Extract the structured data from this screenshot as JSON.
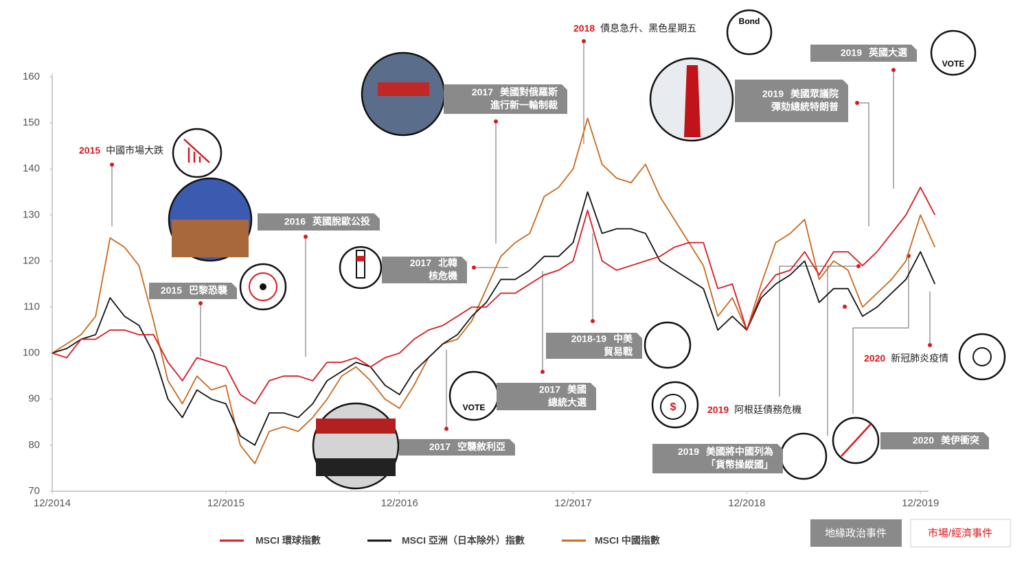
{
  "chart_data": {
    "type": "line",
    "x": [
      "12/2014",
      "01/2015",
      "02/2015",
      "03/2015",
      "04/2015",
      "05/2015",
      "06/2015",
      "07/2015",
      "08/2015",
      "09/2015",
      "10/2015",
      "11/2015",
      "12/2015",
      "01/2016",
      "02/2016",
      "03/2016",
      "04/2016",
      "05/2016",
      "06/2016",
      "07/2016",
      "08/2016",
      "09/2016",
      "10/2016",
      "11/2016",
      "12/2016",
      "01/2017",
      "02/2017",
      "03/2017",
      "04/2017",
      "05/2017",
      "06/2017",
      "07/2017",
      "08/2017",
      "09/2017",
      "10/2017",
      "11/2017",
      "12/2017",
      "01/2018",
      "02/2018",
      "03/2018",
      "04/2018",
      "05/2018",
      "06/2018",
      "07/2018",
      "08/2018",
      "09/2018",
      "10/2018",
      "11/2018",
      "12/2018",
      "01/2019",
      "02/2019",
      "03/2019",
      "04/2019",
      "05/2019",
      "06/2019",
      "07/2019",
      "08/2019",
      "09/2019",
      "10/2019",
      "11/2019",
      "12/2019",
      "01/2020"
    ],
    "series": [
      {
        "name": "MSCI 環球指數",
        "color": "#d7191f",
        "values": [
          100,
          99,
          103,
          103,
          105,
          105,
          104,
          104,
          98,
          94,
          99,
          98,
          97,
          91,
          89,
          94,
          95,
          95,
          94,
          98,
          98,
          99,
          97,
          99,
          100,
          103,
          105,
          106,
          108,
          110,
          110,
          113,
          113,
          115,
          117,
          118,
          120,
          131,
          120,
          118,
          119,
          120,
          121,
          123,
          124,
          124,
          114,
          115,
          105,
          113,
          117,
          118,
          122,
          117,
          122,
          122,
          119,
          122,
          126,
          130,
          136,
          130
        ]
      },
      {
        "name": "MSCI 亞洲（日本除外）指數",
        "color": "#111111",
        "values": [
          100,
          101,
          103,
          104,
          112,
          108,
          106,
          100,
          90,
          86,
          92,
          90,
          89,
          82,
          80,
          87,
          87,
          86,
          89,
          94,
          96,
          98,
          97,
          93,
          91,
          96,
          99,
          102,
          104,
          108,
          111,
          116,
          116,
          118,
          121,
          121,
          124,
          135,
          126,
          127,
          127,
          126,
          120,
          118,
          116,
          114,
          105,
          108,
          105,
          112,
          115,
          117,
          120,
          111,
          114,
          114,
          108,
          110,
          113,
          116,
          122,
          115
        ]
      },
      {
        "name": "MSCI 中國指數",
        "color": "#c8691c",
        "values": [
          100,
          102,
          104,
          108,
          125,
          123,
          119,
          107,
          94,
          89,
          95,
          92,
          93,
          80,
          76,
          83,
          84,
          83,
          86,
          90,
          95,
          97,
          94,
          90,
          88,
          93,
          99,
          102,
          103,
          107,
          114,
          121,
          124,
          126,
          134,
          136,
          140,
          151,
          141,
          138,
          137,
          141,
          134,
          129,
          124,
          119,
          108,
          112,
          105,
          115,
          124,
          126,
          129,
          116,
          120,
          118,
          110,
          113,
          116,
          120,
          130,
          123
        ]
      }
    ],
    "ylim": [
      70,
      160
    ],
    "yticks": [
      70,
      80,
      90,
      100,
      110,
      120,
      130,
      140,
      150,
      160
    ],
    "xticks": [
      "12/2014",
      "12/2015",
      "12/2016",
      "12/2017",
      "12/2018",
      "12/2019"
    ],
    "geopolitical_events": [
      {
        "year": "2015",
        "lines": [
          "巴黎恐襲"
        ]
      },
      {
        "year": "2016",
        "lines": [
          "英國脫歐公投"
        ]
      },
      {
        "year": "2017",
        "lines": [
          "北韓",
          "核危機"
        ]
      },
      {
        "year": "2017",
        "lines": [
          "美國對俄羅斯",
          "進行新一輪制裁"
        ]
      },
      {
        "year": "2017",
        "lines": [
          "空襲敘利亞"
        ]
      },
      {
        "year": "2017",
        "lines": [
          "美國",
          "總統大選"
        ]
      },
      {
        "year": "2018-19",
        "lines": [
          "中美",
          "貿易戰"
        ]
      },
      {
        "year": "2019",
        "lines": [
          "英國大選"
        ]
      },
      {
        "year": "2019",
        "lines": [
          "美國眾議院",
          "彈劾總統特朗普"
        ]
      },
      {
        "year": "2019",
        "lines": [
          "美國將中國列為",
          "「貨幣操縱國」"
        ]
      },
      {
        "year": "2020",
        "lines": [
          "美伊衝突"
        ]
      }
    ],
    "market_events": [
      {
        "year": "2015",
        "text": "中國市場大跌"
      },
      {
        "year": "2018",
        "text": "債息急升、黑色星期五"
      },
      {
        "year": "2019",
        "text": "阿根廷債務危機"
      },
      {
        "year": "2020",
        "text": "新冠肺炎疫情"
      }
    ],
    "event_types": [
      "地緣政治事件",
      "市場/經濟事件"
    ]
  }
}
